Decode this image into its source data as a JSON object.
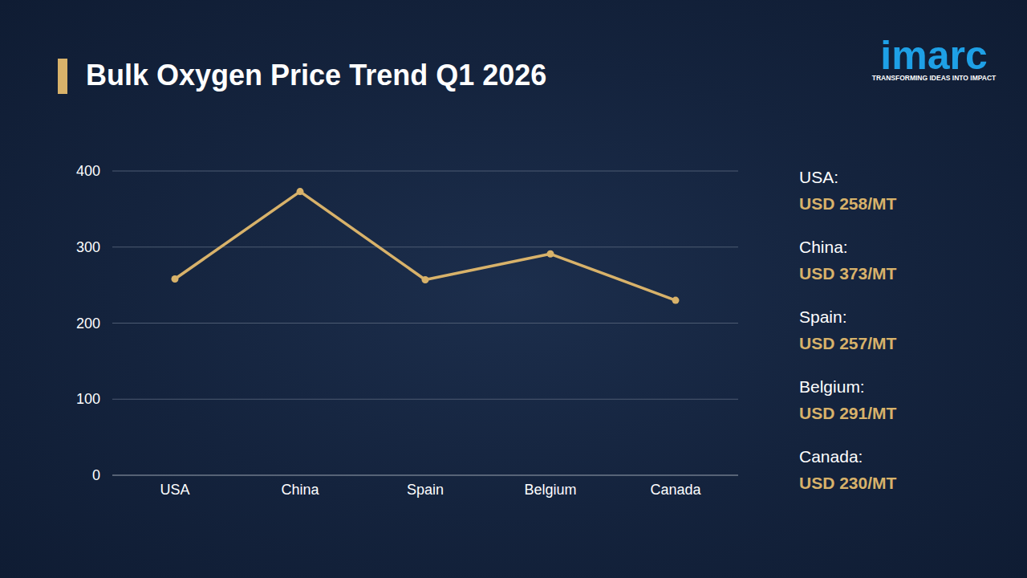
{
  "logo": {
    "text": "imarc",
    "tagline": "TRANSFORMING IDEAS INTO IMPACT"
  },
  "chart_data": {
    "type": "line",
    "title": "Bulk Oxygen Price Trend Q1 2026",
    "categories": [
      "USA",
      "China",
      "Spain",
      "Belgium",
      "Canada"
    ],
    "values": [
      258,
      373,
      257,
      291,
      230
    ],
    "value_labels": [
      "USD 258/MT",
      "USD 373/MT",
      "USD 257/MT",
      "USD 291/MT",
      "USD 230/MT"
    ],
    "annotations": [
      "USA:",
      "China:",
      "Spain:",
      "Belgium:",
      "Canada:"
    ],
    "color": "#d8b26a",
    "marker": "circle",
    "ylim": [
      0,
      400
    ],
    "yticks": [
      0,
      100,
      200,
      300,
      400
    ],
    "grid": true
  }
}
